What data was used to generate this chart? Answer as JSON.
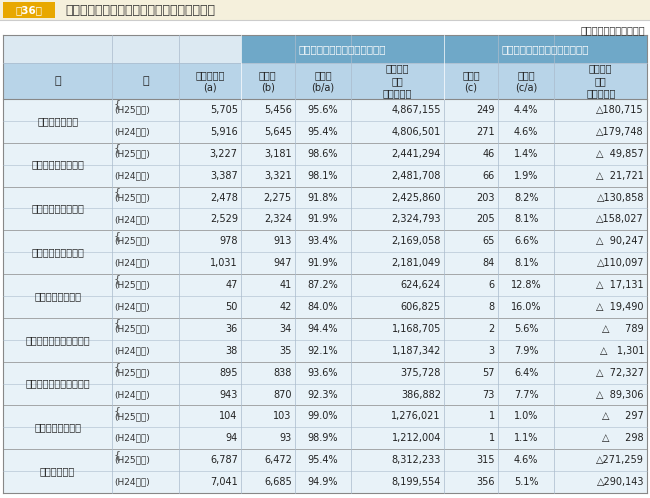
{
  "title_box_text": "第36表",
  "title_text": "第三セクター等の純資産又は正味財産の状況",
  "unit_text": "（単位　法人、百万円）",
  "header_bg_color": "#e8a800",
  "title_box_bg": "#e8a800",
  "title_area_bg": "#f5f0dc",
  "table_header_bg": "#b8d4e8",
  "table_subheader_bg": "#dce8f0",
  "table_body_bg": "#e8f2f8",
  "col_group1": "資産が負債を上回っている法人",
  "col_group2": "負債が資産を上回っている法人",
  "col_headers": [
    "区　　　分",
    "全体法人数\n(a)",
    "法人数\n(b)",
    "構成比\n(b/a)",
    "純資産額\n又は\n正味財産額",
    "法人数\n(c)",
    "構成比\n(c/a)",
    "純資産額\n又は\n正味財産額"
  ],
  "rows": [
    {
      "category": "第三セクター計",
      "sub": "(H25調査)",
      "a": "5,705",
      "b": "5,456",
      "ba": "95.6%",
      "net1": "4,867,155",
      "c": "249",
      "ca": "4.4%",
      "net2": "△180,715"
    },
    {
      "category": "",
      "sub": "(H24調査)",
      "a": "5,916",
      "b": "5,645",
      "ba": "95.4%",
      "net1": "4,806,501",
      "c": "271",
      "ca": "4.6%",
      "net2": "△179,748"
    },
    {
      "category": "社団法人・財団法人",
      "sub": "(H25調査)",
      "a": "3,227",
      "b": "3,181",
      "ba": "98.6%",
      "net1": "2,441,294",
      "c": "46",
      "ca": "1.4%",
      "net2": "△  49,857"
    },
    {
      "category": "",
      "sub": "(H24調査)",
      "a": "3,387",
      "b": "3,321",
      "ba": "98.1%",
      "net1": "2,481,708",
      "c": "66",
      "ca": "1.9%",
      "net2": "△  21,721"
    },
    {
      "category": "会　社　法　法　人",
      "sub": "(H25調査)",
      "a": "2,478",
      "b": "2,275",
      "ba": "91.8%",
      "net1": "2,425,860",
      "c": "203",
      "ca": "8.2%",
      "net2": "△130,858"
    },
    {
      "category": "",
      "sub": "(H24調査)",
      "a": "2,529",
      "b": "2,324",
      "ba": "91.9%",
      "net1": "2,324,793",
      "c": "205",
      "ca": "8.1%",
      "net2": "△158,027"
    },
    {
      "category": "地　方　三　公　社",
      "sub": "(H25調査)",
      "a": "978",
      "b": "913",
      "ba": "93.4%",
      "net1": "2,169,058",
      "c": "65",
      "ca": "6.6%",
      "net2": "△  90,247"
    },
    {
      "category": "",
      "sub": "(H24調査)",
      "a": "1,031",
      "b": "947",
      "ba": "91.9%",
      "net1": "2,181,049",
      "c": "84",
      "ca": "8.1%",
      "net2": "△110,097"
    },
    {
      "category": "地方住宅供給公社",
      "sub": "(H25調査)",
      "a": "47",
      "b": "41",
      "ba": "87.2%",
      "net1": "624,624",
      "c": "6",
      "ca": "12.8%",
      "net2": "△  17,131"
    },
    {
      "category": "",
      "sub": "(H24調査)",
      "a": "50",
      "b": "42",
      "ba": "84.0%",
      "net1": "606,825",
      "c": "8",
      "ca": "16.0%",
      "net2": "△  19,490"
    },
    {
      "category": "地　方　道　路　公　社",
      "sub": "(H25調査)",
      "a": "36",
      "b": "34",
      "ba": "94.4%",
      "net1": "1,168,705",
      "c": "2",
      "ca": "5.6%",
      "net2": "△     789"
    },
    {
      "category": "",
      "sub": "(H24調査)",
      "a": "38",
      "b": "35",
      "ba": "92.1%",
      "net1": "1,187,342",
      "c": "3",
      "ca": "7.9%",
      "net2": "△   1,301"
    },
    {
      "category": "土　地　開　発　公　社",
      "sub": "(H25調査)",
      "a": "895",
      "b": "838",
      "ba": "93.6%",
      "net1": "375,728",
      "c": "57",
      "ca": "6.4%",
      "net2": "△  72,327"
    },
    {
      "category": "",
      "sub": "(H24調査)",
      "a": "943",
      "b": "870",
      "ba": "92.3%",
      "net1": "386,882",
      "c": "73",
      "ca": "7.7%",
      "net2": "△  89,306"
    },
    {
      "category": "地方独立行政法人",
      "sub": "(H25調査)",
      "a": "104",
      "b": "103",
      "ba": "99.0%",
      "net1": "1,276,021",
      "c": "1",
      "ca": "1.0%",
      "net2": "△     297"
    },
    {
      "category": "",
      "sub": "(H24調査)",
      "a": "94",
      "b": "93",
      "ba": "98.9%",
      "net1": "1,212,004",
      "c": "1",
      "ca": "1.1%",
      "net2": "△     298"
    },
    {
      "category": "総　　　　計",
      "sub": "(H25調査)",
      "a": "6,787",
      "b": "6,472",
      "ba": "95.4%",
      "net1": "8,312,233",
      "c": "315",
      "ca": "4.6%",
      "net2": "△271,259"
    },
    {
      "category": "",
      "sub": "(H24調査)",
      "a": "7,041",
      "b": "6,685",
      "ba": "94.9%",
      "net1": "8,199,554",
      "c": "356",
      "ca": "5.1%",
      "net2": "△290,143"
    }
  ]
}
